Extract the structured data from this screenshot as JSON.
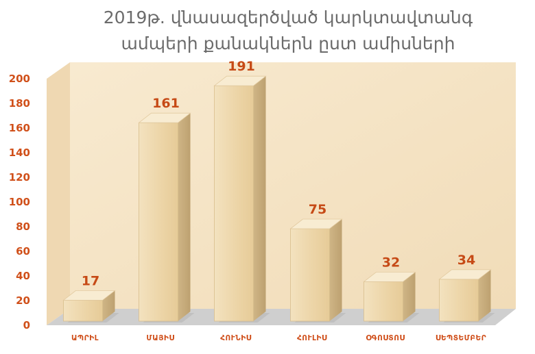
{
  "chart_data": {
    "type": "bar",
    "title_lines": [
      "2019թ. վնասազերծված կարկտավտանգ",
      "ամպերի քանակներն ըստ ամիսների"
    ],
    "categories": [
      "ԱՊՐԻԼ",
      "ՄԱՅԻՍ",
      "ՀՈՒՆԻՍ",
      "ՀՈՒԼԻՍ",
      "ՕԳՈՍՏՈՍ",
      "ՍԵՊՏԵՄԲԵՐ"
    ],
    "values": [
      17,
      161,
      191,
      75,
      32,
      34
    ],
    "y_ticks": [
      0,
      20,
      40,
      60,
      80,
      100,
      120,
      140,
      160,
      180,
      200
    ],
    "ylim": [
      0,
      200
    ],
    "grid": false,
    "legend": "none",
    "colors": {
      "bar_front": "#efd9b0",
      "bar_top": "#f8ecd2",
      "bar_side": "#cdb283",
      "wall": "#f6e5c8",
      "floor": "#cfcfcf",
      "tick_text": "#d0501a",
      "value_text": "#c64a16",
      "title_text": "#6b6b6b"
    }
  }
}
